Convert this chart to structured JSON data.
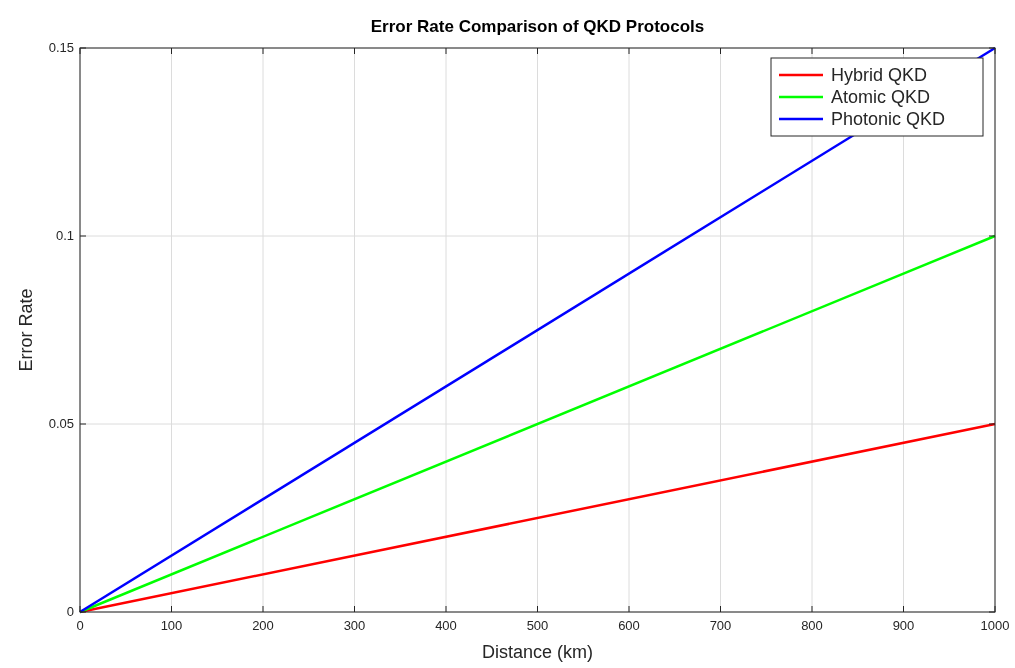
{
  "chart_data": {
    "type": "line",
    "title": "Error Rate Comparison of QKD Protocols",
    "xlabel": "Distance (km)",
    "ylabel": "Error Rate",
    "x": [
      0,
      1000
    ],
    "series": [
      {
        "name": "Hybrid QKD",
        "color": "#ff0000",
        "values": [
          0,
          0.05
        ]
      },
      {
        "name": "Atomic QKD",
        "color": "#00ff00",
        "values": [
          0,
          0.1
        ]
      },
      {
        "name": "Photonic QKD",
        "color": "#0000ff",
        "values": [
          0,
          0.15
        ]
      }
    ],
    "xlim": [
      0,
      1000
    ],
    "xticks": [
      0,
      100,
      200,
      300,
      400,
      500,
      600,
      700,
      800,
      900,
      1000
    ],
    "ylim": [
      0,
      0.15
    ],
    "yticks": [
      0,
      0.05,
      0.1,
      0.15
    ],
    "grid": true,
    "legend": "top right",
    "line_style": "solid",
    "marker": "none"
  }
}
